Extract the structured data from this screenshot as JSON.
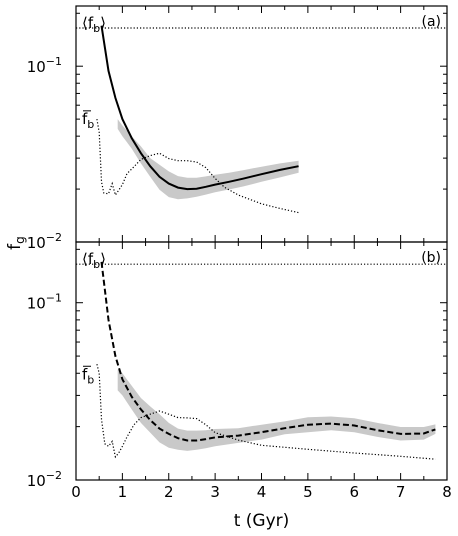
{
  "chart_data": [
    {
      "type": "line",
      "panel_label": "(a)",
      "xlim": [
        0,
        8
      ],
      "ylim": [
        0.01,
        0.22
      ],
      "yscale": "log",
      "annotations": {
        "mean_baryon_fraction": "⟨f",
        "mean_sub": "b",
        "mean_close": "⟩",
        "gas_fraction_bar": "f",
        "gas_sub": "b"
      },
      "series": [
        {
          "style": "solid-mean",
          "x": [
            0.55,
            0.7,
            0.85,
            1.0,
            1.2,
            1.4,
            1.6,
            1.8,
            2.0,
            2.2,
            2.4,
            2.6,
            2.8,
            3.0,
            3.3,
            3.6,
            4.0,
            4.4,
            4.8
          ],
          "y": [
            0.17,
            0.094,
            0.066,
            0.05,
            0.039,
            0.032,
            0.027,
            0.0235,
            0.0215,
            0.0204,
            0.02,
            0.0201,
            0.0206,
            0.0212,
            0.022,
            0.0229,
            0.0243,
            0.0257,
            0.027
          ]
        },
        {
          "style": "shaded-band",
          "x": [
            0.9,
            1.0,
            1.2,
            1.4,
            1.6,
            1.8,
            2.0,
            2.2,
            2.4,
            2.6,
            2.8,
            3.0,
            3.3,
            3.6,
            4.0,
            4.4,
            4.8
          ],
          "upper": [
            0.05,
            0.046,
            0.04,
            0.035,
            0.03,
            0.0275,
            0.0252,
            0.0237,
            0.0232,
            0.0232,
            0.0236,
            0.0241,
            0.0248,
            0.0256,
            0.0268,
            0.028,
            0.029
          ],
          "lower": [
            0.044,
            0.04,
            0.034,
            0.028,
            0.0235,
            0.0198,
            0.018,
            0.0175,
            0.0177,
            0.0181,
            0.0186,
            0.0192,
            0.0199,
            0.0207,
            0.022,
            0.0233,
            0.0248
          ]
        },
        {
          "style": "dotted",
          "x": [
            0.45,
            0.5,
            0.55,
            0.6,
            0.7,
            0.78,
            0.85,
            0.92,
            1.0,
            1.1,
            1.25,
            1.4,
            1.6,
            1.8,
            2.0,
            2.2,
            2.4,
            2.6,
            2.8,
            3.0,
            3.2,
            3.5,
            4.0,
            4.4,
            4.8
          ],
          "y": [
            0.05,
            0.042,
            0.022,
            0.019,
            0.0188,
            0.0215,
            0.0185,
            0.0197,
            0.0212,
            0.0245,
            0.0268,
            0.0295,
            0.031,
            0.032,
            0.0298,
            0.029,
            0.029,
            0.0285,
            0.0265,
            0.023,
            0.0205,
            0.0185,
            0.0165,
            0.0155,
            0.0147
          ]
        },
        {
          "style": "dotted-flat",
          "x": [
            0,
            8
          ],
          "y": [
            0.165,
            0.165
          ]
        }
      ]
    },
    {
      "type": "line",
      "panel_label": "(b)",
      "xlim": [
        0,
        8
      ],
      "ylim": [
        0.01,
        0.22
      ],
      "yscale": "log",
      "annotations": {
        "mean_baryon_fraction": "⟨f",
        "mean_sub": "b",
        "mean_close": "⟩",
        "gas_fraction_bar": "f",
        "gas_sub": "b"
      },
      "series": [
        {
          "style": "dashed-mean",
          "x": [
            0.55,
            0.7,
            0.85,
            1.0,
            1.2,
            1.4,
            1.6,
            1.8,
            2.0,
            2.2,
            2.4,
            2.6,
            2.8,
            3.0,
            3.5,
            4.0,
            4.5,
            5.0,
            5.5,
            6.0,
            6.5,
            7.0,
            7.5,
            7.75
          ],
          "y": [
            0.17,
            0.08,
            0.05,
            0.037,
            0.0295,
            0.025,
            0.0218,
            0.0195,
            0.0182,
            0.0172,
            0.0167,
            0.0167,
            0.017,
            0.0174,
            0.0178,
            0.0186,
            0.0196,
            0.0205,
            0.0208,
            0.0203,
            0.0191,
            0.0182,
            0.0183,
            0.0193
          ]
        },
        {
          "style": "shaded-band",
          "x": [
            0.9,
            1.0,
            1.2,
            1.4,
            1.6,
            1.8,
            2.0,
            2.2,
            2.4,
            2.6,
            2.8,
            3.0,
            3.5,
            4.0,
            4.5,
            5.0,
            5.5,
            6.0,
            6.5,
            7.0,
            7.5,
            7.75
          ],
          "upper": [
            0.042,
            0.04,
            0.034,
            0.029,
            0.026,
            0.0235,
            0.021,
            0.0195,
            0.019,
            0.019,
            0.0191,
            0.0194,
            0.0196,
            0.0205,
            0.0214,
            0.0226,
            0.0228,
            0.0223,
            0.021,
            0.0199,
            0.0199,
            0.0206
          ],
          "lower": [
            0.032,
            0.03,
            0.025,
            0.021,
            0.0185,
            0.0163,
            0.0152,
            0.0148,
            0.0146,
            0.0148,
            0.0151,
            0.0155,
            0.0162,
            0.0169,
            0.0181,
            0.0186,
            0.0191,
            0.0186,
            0.0175,
            0.0167,
            0.0169,
            0.0182
          ]
        },
        {
          "style": "dotted",
          "x": [
            0.45,
            0.5,
            0.55,
            0.62,
            0.7,
            0.78,
            0.85,
            0.92,
            1.0,
            1.1,
            1.25,
            1.4,
            1.6,
            1.8,
            2.0,
            2.2,
            2.4,
            2.6,
            2.8,
            3.0,
            3.5,
            4.0,
            5.0,
            6.0,
            7.0,
            7.75
          ],
          "y": [
            0.045,
            0.04,
            0.022,
            0.016,
            0.0155,
            0.0165,
            0.0135,
            0.0142,
            0.0155,
            0.0175,
            0.0205,
            0.0225,
            0.0235,
            0.0245,
            0.0235,
            0.0225,
            0.0224,
            0.0222,
            0.0205,
            0.0185,
            0.0168,
            0.0157,
            0.0149,
            0.0142,
            0.0136,
            0.0131
          ]
        },
        {
          "style": "dotted-flat",
          "x": [
            0,
            8
          ],
          "y": [
            0.165,
            0.165
          ]
        }
      ]
    }
  ],
  "axes": {
    "xlabel": "t (Gyr)",
    "ylabel_main": "f",
    "ylabel_sub": "g",
    "x_ticks": [
      "0",
      "1",
      "2",
      "3",
      "4",
      "5",
      "6",
      "7",
      "8"
    ],
    "y_major_base": "10",
    "y_major_exp_a": "−1",
    "y_major_exp_b": "−2"
  },
  "colors": {
    "band": "#c9c9c9",
    "line": "#000000"
  }
}
